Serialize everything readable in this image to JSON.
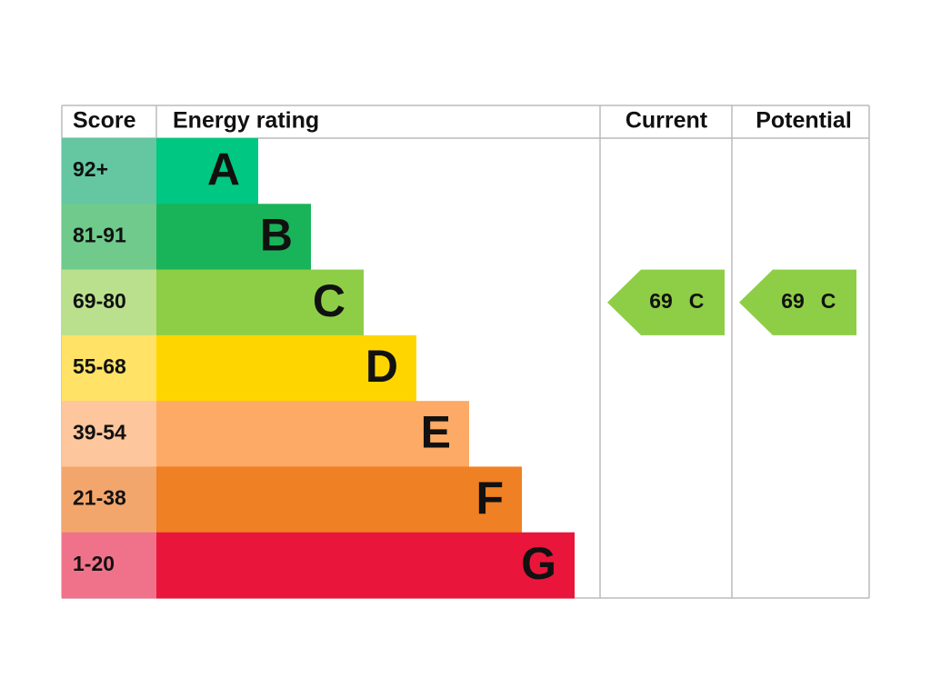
{
  "header": {
    "score": "Score",
    "rating": "Energy rating",
    "current": "Current",
    "potential": "Potential"
  },
  "bands": [
    {
      "score": "92+",
      "letter": "A",
      "color": "#00c781",
      "score_color": "#64c7a1"
    },
    {
      "score": "81-91",
      "letter": "B",
      "color": "#19b459",
      "score_color": "#70ca8b"
    },
    {
      "score": "69-80",
      "letter": "C",
      "color": "#8dce46",
      "score_color": "#bae08e"
    },
    {
      "score": "55-68",
      "letter": "D",
      "color": "#ffd500",
      "score_color": "#ffe266"
    },
    {
      "score": "39-54",
      "letter": "E",
      "color": "#fcaa65",
      "score_color": "#fdc69c"
    },
    {
      "score": "21-38",
      "letter": "F",
      "color": "#ef8023",
      "score_color": "#f3a66c"
    },
    {
      "score": "1-20",
      "letter": "G",
      "color": "#e9153b",
      "score_color": "#f0728a"
    }
  ],
  "current": {
    "value": 69,
    "band": "C"
  },
  "potential": {
    "value": 69,
    "band": "C"
  }
}
